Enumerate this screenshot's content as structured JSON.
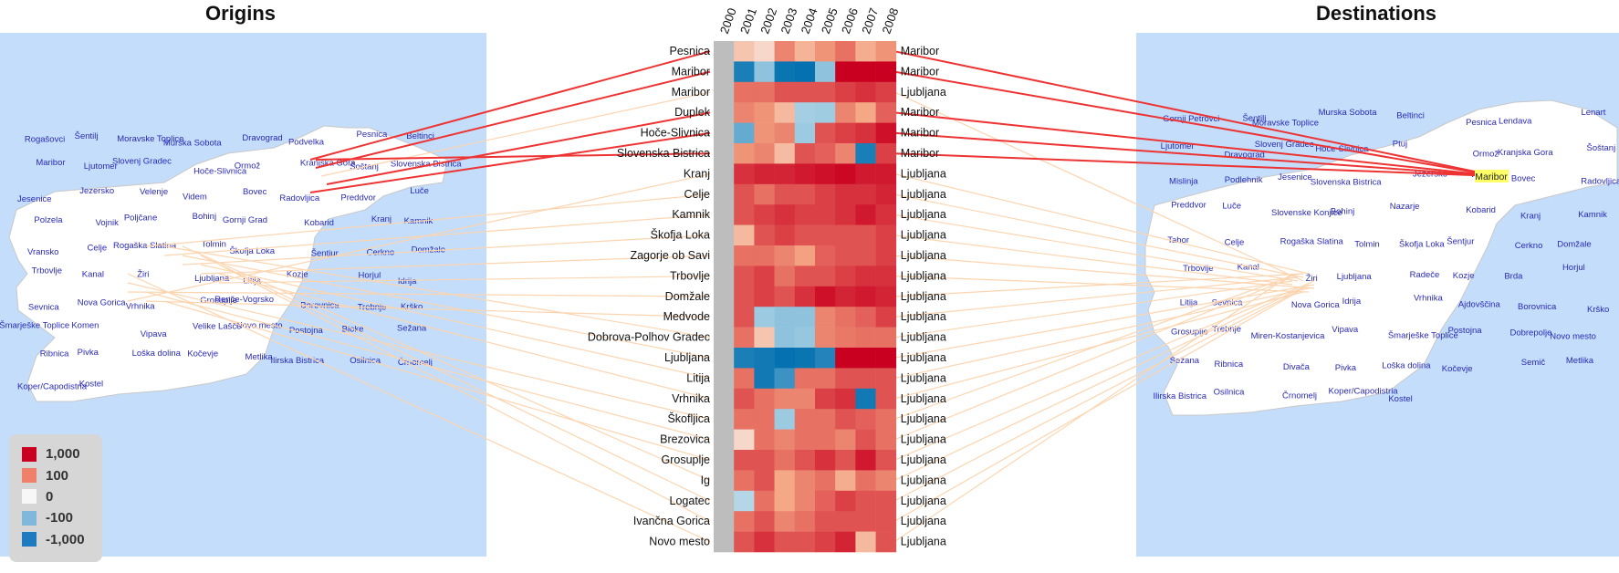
{
  "panels": {
    "origins_title": "Origins",
    "destinations_title": "Destinations"
  },
  "colors": {
    "strong_pos": "#ca0020",
    "pos": "#f4a582",
    "neutral": "#f7f7f7",
    "neg": "#92c5de",
    "strong_neg": "#0571b0",
    "missing": "#bdbdbd",
    "map_bg": "#c3ddfa",
    "land": "#ffffff",
    "highlight_line": "#ee3333",
    "other_line": "#fcd5b0",
    "maribor_highlight": "#ffff66"
  },
  "legend": {
    "items": [
      {
        "label": "1,000",
        "color": "#ca0020"
      },
      {
        "label": "100",
        "color": "#f0806a"
      },
      {
        "label": "0",
        "color": "#f7f7f7"
      },
      {
        "label": "-100",
        "color": "#7fb8da"
      },
      {
        "label": "-1,000",
        "color": "#1f7bbf"
      }
    ]
  },
  "chart_data": {
    "type": "heatmap",
    "years": [
      "2000",
      "2001",
      "2002",
      "2003",
      "2004",
      "2005",
      "2006",
      "2007",
      "2008"
    ],
    "scale": "signed log: -1,000 to 1,000",
    "rows": [
      {
        "origin": "Pesnica",
        "destination": "Maribor",
        "highlight": true,
        "values": [
          null,
          15,
          5,
          150,
          40,
          120,
          200,
          60,
          120
        ]
      },
      {
        "origin": "Maribor",
        "destination": "Maribor",
        "highlight": true,
        "values": [
          null,
          -700,
          -100,
          -900,
          -1000,
          -100,
          1000,
          1000,
          1000
        ]
      },
      {
        "origin": "Maribor",
        "destination": "Ljubljana",
        "highlight": false,
        "values": [
          null,
          200,
          200,
          300,
          300,
          300,
          400,
          500,
          400
        ]
      },
      {
        "origin": "Duplek",
        "destination": "Maribor",
        "highlight": true,
        "values": [
          null,
          150,
          120,
          30,
          -40,
          -50,
          150,
          80,
          250
        ]
      },
      {
        "origin": "Hoče-Slivnica",
        "destination": "Maribor",
        "highlight": true,
        "values": [
          null,
          -200,
          120,
          150,
          -60,
          300,
          400,
          500,
          800
        ]
      },
      {
        "origin": "Slovenska Bistrica",
        "destination": "Maribor",
        "highlight": true,
        "values": [
          null,
          120,
          150,
          25,
          300,
          250,
          150,
          -700,
          400
        ]
      },
      {
        "origin": "Kranj",
        "destination": "Ljubljana",
        "highlight": false,
        "values": [
          null,
          500,
          600,
          600,
          700,
          800,
          900,
          700,
          700
        ]
      },
      {
        "origin": "Celje",
        "destination": "Ljubljana",
        "highlight": false,
        "values": [
          null,
          300,
          200,
          300,
          300,
          400,
          500,
          500,
          600
        ]
      },
      {
        "origin": "Kamnik",
        "destination": "Ljubljana",
        "highlight": false,
        "values": [
          null,
          300,
          400,
          500,
          400,
          400,
          500,
          700,
          500
        ]
      },
      {
        "origin": "Škofja Loka",
        "destination": "Ljubljana",
        "highlight": false,
        "values": [
          null,
          30,
          300,
          400,
          300,
          300,
          300,
          300,
          400
        ]
      },
      {
        "origin": "Zagorje ob Savi",
        "destination": "Ljubljana",
        "highlight": false,
        "values": [
          null,
          200,
          200,
          150,
          100,
          250,
          300,
          300,
          400
        ]
      },
      {
        "origin": "Trbovlje",
        "destination": "Ljubljana",
        "highlight": false,
        "values": [
          null,
          300,
          400,
          200,
          300,
          300,
          400,
          500,
          500
        ]
      },
      {
        "origin": "Domžale",
        "destination": "Ljubljana",
        "highlight": false,
        "values": [
          null,
          300,
          400,
          300,
          500,
          800,
          600,
          700,
          600
        ]
      },
      {
        "origin": "Medvode",
        "destination": "Ljubljana",
        "highlight": false,
        "values": [
          null,
          300,
          -60,
          -100,
          -100,
          150,
          200,
          250,
          400
        ]
      },
      {
        "origin": "Dobrova-Polhov Gradec",
        "destination": "Ljubljana",
        "highlight": false,
        "values": [
          null,
          200,
          15,
          -100,
          -80,
          150,
          180,
          200,
          200
        ]
      },
      {
        "origin": "Ljubljana",
        "destination": "Ljubljana",
        "highlight": false,
        "values": [
          null,
          -700,
          -800,
          -1000,
          -900,
          -600,
          1000,
          1000,
          1000
        ]
      },
      {
        "origin": "Litija",
        "destination": "Ljubljana",
        "highlight": false,
        "values": [
          null,
          200,
          -800,
          -400,
          200,
          200,
          300,
          300,
          300
        ]
      },
      {
        "origin": "Vrhnika",
        "destination": "Ljubljana",
        "highlight": false,
        "values": [
          null,
          300,
          200,
          150,
          150,
          400,
          500,
          -800,
          300
        ]
      },
      {
        "origin": "Škofljica",
        "destination": "Ljubljana",
        "highlight": false,
        "values": [
          null,
          200,
          200,
          -60,
          200,
          200,
          300,
          250,
          200
        ]
      },
      {
        "origin": "Brezovica",
        "destination": "Ljubljana",
        "highlight": false,
        "values": [
          null,
          5,
          200,
          150,
          200,
          200,
          150,
          300,
          200
        ]
      },
      {
        "origin": "Grosuplje",
        "destination": "Ljubljana",
        "highlight": false,
        "values": [
          null,
          300,
          300,
          200,
          300,
          500,
          300,
          700,
          300
        ]
      },
      {
        "origin": "Ig",
        "destination": "Ljubljana",
        "highlight": false,
        "values": [
          null,
          200,
          300,
          80,
          150,
          200,
          60,
          200,
          150
        ]
      },
      {
        "origin": "Logatec",
        "destination": "Ljubljana",
        "highlight": false,
        "values": [
          null,
          -20,
          200,
          80,
          150,
          250,
          400,
          300,
          300
        ]
      },
      {
        "origin": "Ivančna Gorica",
        "destination": "Ljubljana",
        "highlight": false,
        "values": [
          null,
          200,
          300,
          150,
          200,
          300,
          300,
          300,
          300
        ]
      },
      {
        "origin": "Novo mesto",
        "destination": "Ljubljana",
        "highlight": false,
        "values": [
          null,
          300,
          500,
          300,
          300,
          400,
          600,
          30,
          300
        ]
      }
    ]
  },
  "maps": {
    "origin_labels": [
      "Rogašovci",
      "Šentilj",
      "Moravske Toplice",
      "Murska Sobota",
      "Dravograd",
      "Podvelka",
      "Pesnica",
      "Beltinci",
      "Maribor",
      "Ljutomer",
      "Slovenj Gradec",
      "Hoče-Slivnica",
      "Ormož",
      "Kranjska Gora",
      "Šoštanj",
      "Slovenska Bistrica",
      "Jesenice",
      "Jezersko",
      "Velenje",
      "Videm",
      "Bovec",
      "Radovljica",
      "Preddvor",
      "Luče",
      "Polzela",
      "Vojnik",
      "Poljčane",
      "Bohinj",
      "Gornji Grad",
      "Kobarid",
      "Kranj",
      "Kamnik",
      "Vransko",
      "Celje",
      "Rogaška Slatina",
      "Tolmin",
      "Škofja Loka",
      "Šentjur",
      "Cerkno",
      "Domžale",
      "Trbovlje",
      "Kanal",
      "Žiri",
      "Ljubljana",
      "Litija",
      "Kozje",
      "Horjul",
      "Idrija",
      "Sevnica",
      "Nova Gorica",
      "Vrhnika",
      "Grosuplje",
      "Renče-Vogrsko",
      "Borovnica",
      "Trebnje",
      "Krško",
      "Šmarješke Toplice",
      "Komen",
      "Vipava",
      "Velike Lašče",
      "Novo mesto",
      "Postojna",
      "Bloke",
      "Sežana",
      "Ribnica",
      "Pivka",
      "Loška dolina",
      "Kočevje",
      "Metlika",
      "Ilirska Bistrica",
      "Osilnica",
      "Črnomelj",
      "Koper/Capodistria",
      "Kostel"
    ],
    "dest_labels": [
      "Gornji Petrovci",
      "Šentilj",
      "Moravske Toplice",
      "Murska Sobota",
      "Beltinci",
      "Pesnica",
      "Lendava",
      "Lenart",
      "Maribor",
      "Ljutomer",
      "Dravograd",
      "Slovenj Gradec",
      "Hoče-Slivnica",
      "Ptuj",
      "Ormož",
      "Kranjska Gora",
      "Šoštanj",
      "Mislinja",
      "Podlehnik",
      "Jesenice",
      "Slovenska Bistrica",
      "Jezersko",
      "Velenje",
      "Bovec",
      "Radovljica",
      "Preddvor",
      "Luče",
      "Slovenske Konjice",
      "Bohinj",
      "Nazarje",
      "Kobarid",
      "Kranj",
      "Kamnik",
      "Tabor",
      "Celje",
      "Rogaška Slatina",
      "Tolmin",
      "Škofja Loka",
      "Šentjur",
      "Cerkno",
      "Domžale",
      "Trbovlje",
      "Kanal",
      "Žiri",
      "Ljubljana",
      "Radeče",
      "Kozje",
      "Brda",
      "Horjul",
      "Litija",
      "Sevnica",
      "Nova Gorica",
      "Idrija",
      "Vrhnika",
      "Ajdovščina",
      "Borovnica",
      "Krško",
      "Grosuplje",
      "Trebnje",
      "Miren-Kostanjevica",
      "Vipava",
      "Šmarješke Toplice",
      "Postojna",
      "Dobrepolje",
      "Novo mesto",
      "Sežana",
      "Ribnica",
      "Divača",
      "Pivka",
      "Loška dolina",
      "Kočevje",
      "Semič",
      "Metlika",
      "Ilirska Bistrica",
      "Osilnica",
      "Črnomelj",
      "Koper/Capodistria",
      "Kostel"
    ]
  }
}
